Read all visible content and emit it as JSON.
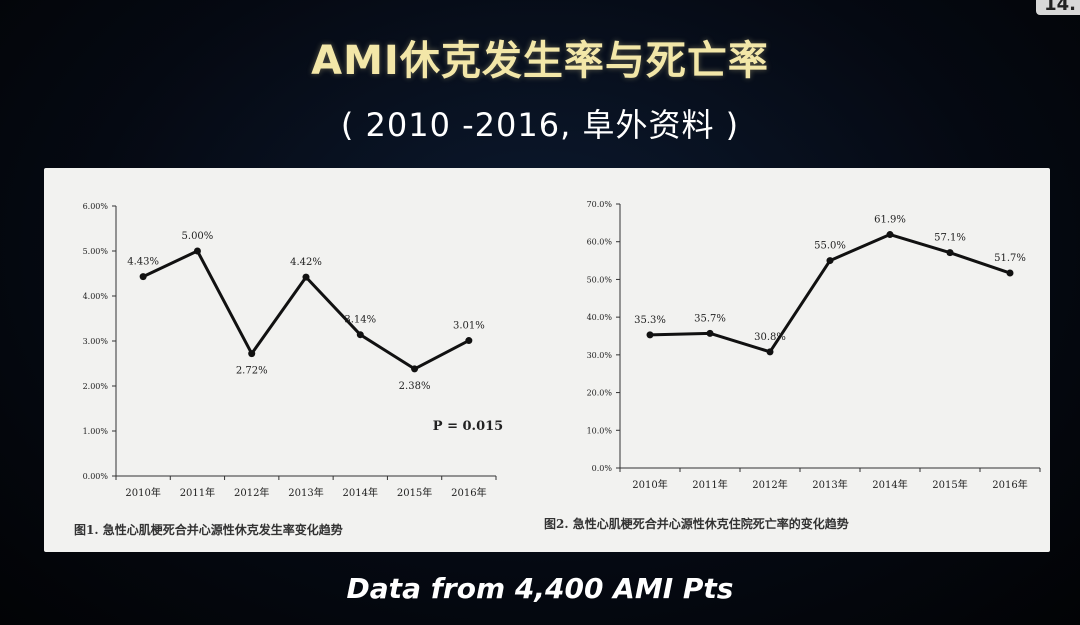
{
  "slide": {
    "page_number": "14.",
    "title": "AMI休克发生率与死亡率",
    "subtitle": "( 2010 -2016, 阜外资料 )",
    "footer": "Data from 4,400 AMI Pts"
  },
  "chart_data": [
    {
      "type": "line",
      "title": "",
      "caption": "图1. 急性心肌梗死合并心源性休克发生率变化趋势",
      "categories": [
        "2010年",
        "2011年",
        "2012年",
        "2013年",
        "2014年",
        "2015年",
        "2016年"
      ],
      "values": [
        4.43,
        5.0,
        2.72,
        4.42,
        3.14,
        2.38,
        3.01
      ],
      "data_labels": [
        "4.43%",
        "5.00%",
        "2.72%",
        "4.42%",
        "3.14%",
        "2.38%",
        "3.01%"
      ],
      "y_ticks": [
        "0.00%",
        "1.00%",
        "2.00%",
        "3.00%",
        "4.00%",
        "5.00%",
        "6.00%"
      ],
      "ylim": [
        0,
        6
      ],
      "annotation": "P = 0.015",
      "xlabel": "",
      "ylabel": "",
      "grid": false,
      "line_color": "#111111"
    },
    {
      "type": "line",
      "title": "",
      "caption": "图2. 急性心肌梗死合并心源性休克住院死亡率的变化趋势",
      "categories": [
        "2010年",
        "2011年",
        "2012年",
        "2013年",
        "2014年",
        "2015年",
        "2016年"
      ],
      "values": [
        35.3,
        35.7,
        30.8,
        55.0,
        61.9,
        57.1,
        51.7
      ],
      "data_labels": [
        "35.3%",
        "35.7%",
        "30.8%",
        "55.0%",
        "61.9%",
        "57.1%",
        "51.7%"
      ],
      "y_ticks": [
        "0.0%",
        "10.0%",
        "20.0%",
        "30.0%",
        "40.0%",
        "50.0%",
        "60.0%",
        "70.0%"
      ],
      "ylim": [
        0,
        70
      ],
      "xlabel": "",
      "ylabel": "",
      "grid": false,
      "line_color": "#111111"
    }
  ]
}
